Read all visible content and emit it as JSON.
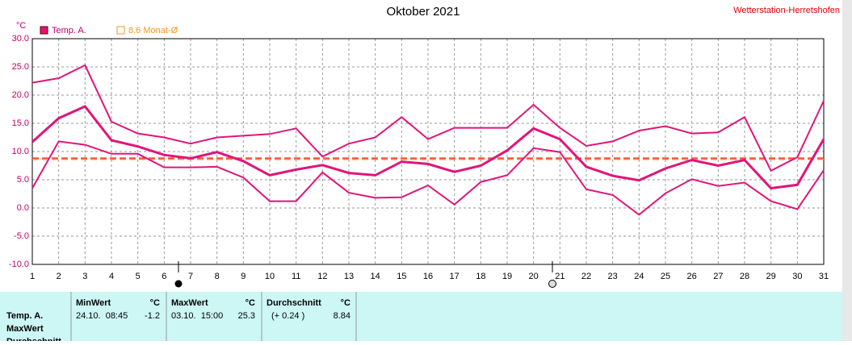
{
  "header": {
    "site": "Wetterstation-Herretshofen"
  },
  "chart_data": {
    "type": "line",
    "title": "Oktober 2021",
    "y_unit": "°C",
    "x": [
      1,
      2,
      3,
      4,
      5,
      6,
      7,
      8,
      9,
      10,
      11,
      12,
      13,
      14,
      15,
      16,
      17,
      18,
      19,
      20,
      21,
      22,
      23,
      24,
      25,
      26,
      27,
      28,
      29,
      30,
      31
    ],
    "series": [
      {
        "name": "Temp. A.",
        "color": "#e0157a",
        "values": [
          11.7,
          15.9,
          18.0,
          12.0,
          10.9,
          9.4,
          8.8,
          9.9,
          8.3,
          5.8,
          6.8,
          7.6,
          6.2,
          5.8,
          8.2,
          7.8,
          6.4,
          7.5,
          10.2,
          14.1,
          12.2,
          7.3,
          5.7,
          4.9,
          7.0,
          8.5,
          7.5,
          8.5,
          3.5,
          4.1,
          12.2
        ]
      },
      {
        "color": "#e0157a",
        "values": [
          22.2,
          23.0,
          25.3,
          15.3,
          13.2,
          12.5,
          11.4,
          12.5,
          12.8,
          13.1,
          14.1,
          9.1,
          11.4,
          12.5,
          16.1,
          12.2,
          14.2,
          14.2,
          14.2,
          18.3,
          14.2,
          11.0,
          11.8,
          13.7,
          14.5,
          13.2,
          13.4,
          16.1,
          6.6,
          9.0,
          19.0
        ]
      },
      {
        "color": "#e0157a",
        "values": [
          3.5,
          11.8,
          11.2,
          9.6,
          9.6,
          7.2,
          7.2,
          7.3,
          5.4,
          1.2,
          1.2,
          6.3,
          2.7,
          1.8,
          1.9,
          4.0,
          0.6,
          4.6,
          5.8,
          10.6,
          9.9,
          3.3,
          2.3,
          -1.2,
          2.6,
          5.1,
          3.9,
          4.5,
          1.2,
          -0.2,
          6.7
        ]
      }
    ],
    "monthly_avg": {
      "label": "8.6 Monat-Ø",
      "value": 8.6,
      "color": "#f7941d"
    },
    "mean_line": {
      "value": 8.84,
      "color": "#ff3030"
    },
    "xlim": [
      1,
      31
    ],
    "xticks": [
      1,
      2,
      3,
      4,
      5,
      6,
      7,
      8,
      9,
      10,
      11,
      12,
      13,
      14,
      15,
      16,
      17,
      18,
      19,
      20,
      21,
      22,
      23,
      24,
      25,
      26,
      27,
      28,
      29,
      30,
      31
    ],
    "ylim": [
      -10,
      30
    ],
    "yticks": [
      {
        "value": 30,
        "label": "30.0"
      },
      {
        "value": 25,
        "label": "25.0"
      },
      {
        "value": 20,
        "label": "20.0"
      },
      {
        "value": 15,
        "label": "15.0"
      },
      {
        "value": 10,
        "label": "10.0"
      },
      {
        "value": 5,
        "label": "5.0"
      },
      {
        "value": 0,
        "label": "0.0"
      },
      {
        "value": -5,
        "label": "-5.0"
      },
      {
        "value": -10,
        "label": "-10.0"
      }
    ],
    "grid": true
  },
  "table": {
    "row_labels": [
      "Temp. A.",
      "MaxWert",
      "Durchschnitt"
    ],
    "columns": [
      {
        "title": "MinWert",
        "unit": "°C",
        "cells": [
          "24.10.  08:45",
          "-1.2"
        ]
      },
      {
        "title": "MaxWert",
        "unit": "°C",
        "cells": [
          "03.10.  15:00",
          "25.3"
        ]
      },
      {
        "title": "Durchschnitt",
        "unit": "°C",
        "cells": [
          "(+ 0.24 )",
          "8.84"
        ]
      }
    ]
  }
}
